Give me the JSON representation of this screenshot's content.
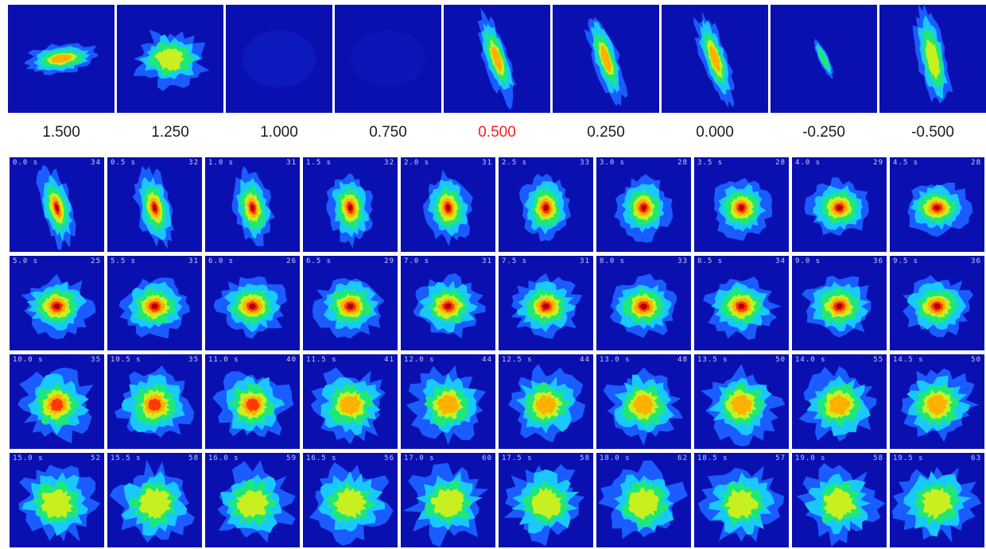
{
  "top_row": {
    "labels": [
      "1.500",
      "1.250",
      "1.000",
      "0.750",
      "0.500",
      "0.250",
      "0.000",
      "-0.250",
      "-0.500"
    ],
    "highlight_index": 4,
    "highlight_color": "#ff1b1b",
    "images": [
      {
        "shape": "horizontal-ellipse",
        "intensity": 0.85
      },
      {
        "shape": "diffuse-blob",
        "intensity": 0.8
      },
      {
        "shape": "faint",
        "intensity": 0.15
      },
      {
        "shape": "faint",
        "intensity": 0.1
      },
      {
        "shape": "tilted-elongated",
        "intensity": 0.95
      },
      {
        "shape": "tilted-elongated",
        "intensity": 0.95
      },
      {
        "shape": "tilted-elongated",
        "intensity": 0.9
      },
      {
        "shape": "thin-streak",
        "intensity": 0.6
      },
      {
        "shape": "tilted-elongated",
        "intensity": 0.75
      }
    ]
  },
  "grid": {
    "rows": [
      {
        "cells": [
          {
            "t": "0.0 s",
            "v": "34"
          },
          {
            "t": "0.5 s",
            "v": "32"
          },
          {
            "t": "1.0 s",
            "v": "31"
          },
          {
            "t": "1.5 s",
            "v": "32"
          },
          {
            "t": "2.0 s",
            "v": "31"
          },
          {
            "t": "2.5 s",
            "v": "33"
          },
          {
            "t": "3.0 s",
            "v": "28"
          },
          {
            "t": "3.5 s",
            "v": "28"
          },
          {
            "t": "4.0 s",
            "v": "29"
          },
          {
            "t": "4.5 s",
            "v": "28"
          }
        ]
      },
      {
        "cells": [
          {
            "t": "5.0 s",
            "v": "25"
          },
          {
            "t": "5.5 s",
            "v": "31"
          },
          {
            "t": "6.0 s",
            "v": "26"
          },
          {
            "t": "6.5 s",
            "v": "29"
          },
          {
            "t": "7.0 s",
            "v": "31"
          },
          {
            "t": "7.5 s",
            "v": "31"
          },
          {
            "t": "8.0 s",
            "v": "33"
          },
          {
            "t": "8.5 s",
            "v": "34"
          },
          {
            "t": "9.0 s",
            "v": "36"
          },
          {
            "t": "9.5 s",
            "v": "36"
          }
        ]
      },
      {
        "cells": [
          {
            "t": "10.0 s",
            "v": "35"
          },
          {
            "t": "10.5 s",
            "v": "35"
          },
          {
            "t": "11.0 s",
            "v": "40"
          },
          {
            "t": "11.5 s",
            "v": "41"
          },
          {
            "t": "12.0 s",
            "v": "44"
          },
          {
            "t": "12.5 s",
            "v": "44"
          },
          {
            "t": "13.0 s",
            "v": "48"
          },
          {
            "t": "13.5 s",
            "v": "50"
          },
          {
            "t": "14.0 s",
            "v": "55"
          },
          {
            "t": "14.5 s",
            "v": "50"
          }
        ]
      },
      {
        "cells": [
          {
            "t": "15.0 s",
            "v": "52"
          },
          {
            "t": "15.5 s",
            "v": "58"
          },
          {
            "t": "16.0 s",
            "v": "59"
          },
          {
            "t": "16.5 s",
            "v": "56"
          },
          {
            "t": "17.0 s",
            "v": "60"
          },
          {
            "t": "17.5 s",
            "v": "58"
          },
          {
            "t": "18.0 s",
            "v": "62"
          },
          {
            "t": "18.5 s",
            "v": "57"
          },
          {
            "t": "19.0 s",
            "v": "58"
          },
          {
            "t": "19.5 s",
            "v": "63"
          }
        ]
      }
    ]
  },
  "colors": {
    "background_blue": "#0a10b0",
    "palette": [
      "#0a10b0",
      "#1a5cff",
      "#18c8ff",
      "#1fe878",
      "#c8f020",
      "#ffb000",
      "#ff3a00",
      "#b00000"
    ]
  }
}
